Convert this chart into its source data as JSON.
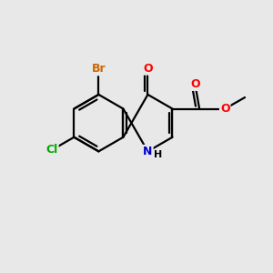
{
  "background_color": "#e8e8e8",
  "bond_color": "#000000",
  "atom_colors": {
    "N": "#0000cc",
    "O": "#ff0000",
    "Cl": "#00aa00",
    "Br": "#cc6600",
    "C": "#000000",
    "H": "#000000"
  },
  "figsize": [
    3.0,
    3.0
  ],
  "dpi": 100,
  "lw": 1.6
}
